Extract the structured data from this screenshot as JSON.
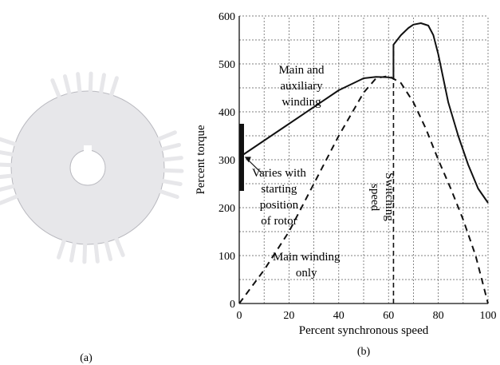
{
  "figure": {
    "caption_a": "(a)",
    "caption_b": "(b)"
  },
  "chart_data": {
    "type": "line",
    "title": "",
    "xlabel": "Percent synchronous speed",
    "ylabel": "Percent torque",
    "xlim": [
      0,
      100
    ],
    "ylim": [
      0,
      600
    ],
    "xticks": [
      0,
      20,
      40,
      60,
      80,
      100
    ],
    "yticks": [
      0,
      100,
      200,
      300,
      400,
      500,
      600
    ],
    "grid": true,
    "series": [
      {
        "name": "",
        "style": "solid",
        "x": [
          0,
          10,
          20,
          30,
          40,
          50,
          55,
          60,
          62,
          62,
          65,
          68,
          70,
          73,
          76,
          78,
          80,
          84,
          88,
          92,
          96,
          100
        ],
        "y": [
          305,
          340,
          375,
          410,
          445,
          470,
          473,
          472,
          470,
          540,
          560,
          575,
          582,
          585,
          580,
          560,
          520,
          420,
          350,
          290,
          240,
          210
        ]
      },
      {
        "name": "",
        "style": "dashed",
        "x": [
          0,
          10,
          20,
          30,
          40,
          50,
          55,
          60,
          65,
          70,
          75,
          80,
          85,
          90,
          95,
          100
        ],
        "y": [
          0,
          70,
          150,
          250,
          350,
          440,
          470,
          475,
          460,
          420,
          365,
          300,
          240,
          175,
          100,
          0
        ]
      }
    ],
    "annotations": [
      {
        "id": "main-aux",
        "text": "Main and auxiliary winding",
        "x": 25,
        "y": 480
      },
      {
        "id": "main-only",
        "text": "Main winding only",
        "x": 27,
        "y": 90
      },
      {
        "id": "varies",
        "text": "Varies with starting position of rotor",
        "x": 16,
        "y": 265
      },
      {
        "id": "switching",
        "text": "Switching speed",
        "x": 59,
        "y": 210
      }
    ],
    "range_bar": {
      "x": 0,
      "y_min": 235,
      "y_max": 375
    },
    "switching_speed": 62
  }
}
